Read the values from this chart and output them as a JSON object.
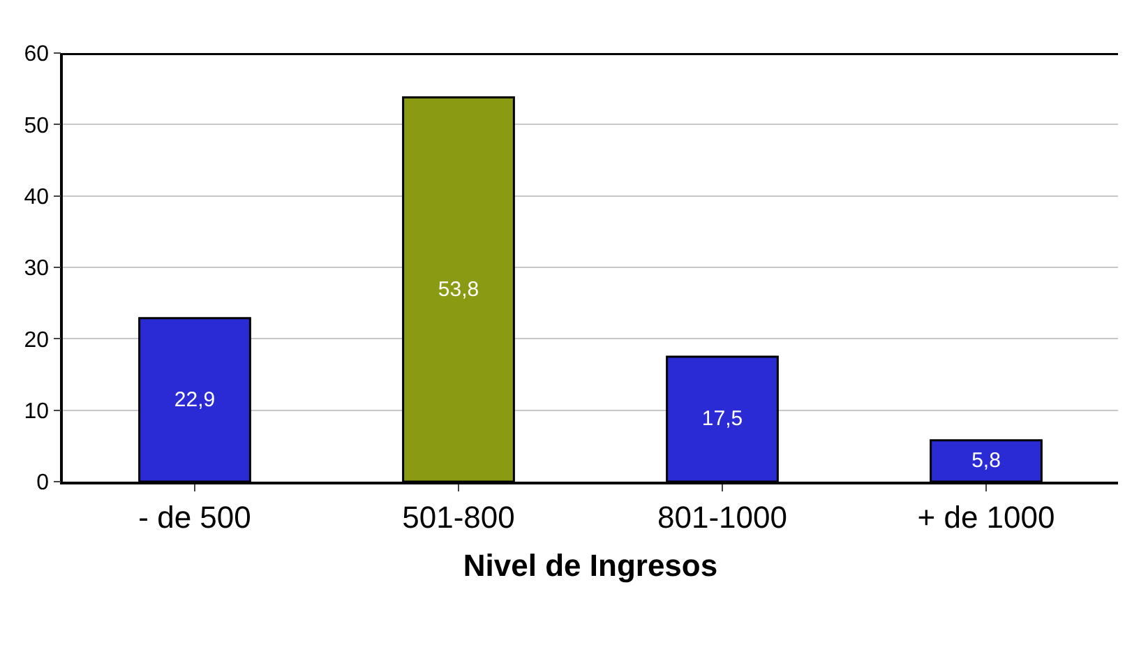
{
  "chart_data": {
    "type": "bar",
    "xlabel": "Nivel de Ingresos",
    "categories": [
      "- de 500",
      "501-800",
      "801-1000",
      "+ de 1000"
    ],
    "values": [
      22.9,
      53.8,
      17.5,
      5.8
    ],
    "colors": [
      "#2b2bd6",
      "#8a9a12",
      "#2b2bd6",
      "#2b2bd6"
    ],
    "value_labels": [
      "22,9",
      "53,8",
      "17,5",
      "5,8"
    ],
    "ylim": [
      0,
      60
    ],
    "yticks": [
      0,
      10,
      20,
      30,
      40,
      50,
      60
    ],
    "grid": "y",
    "legend": false
  }
}
